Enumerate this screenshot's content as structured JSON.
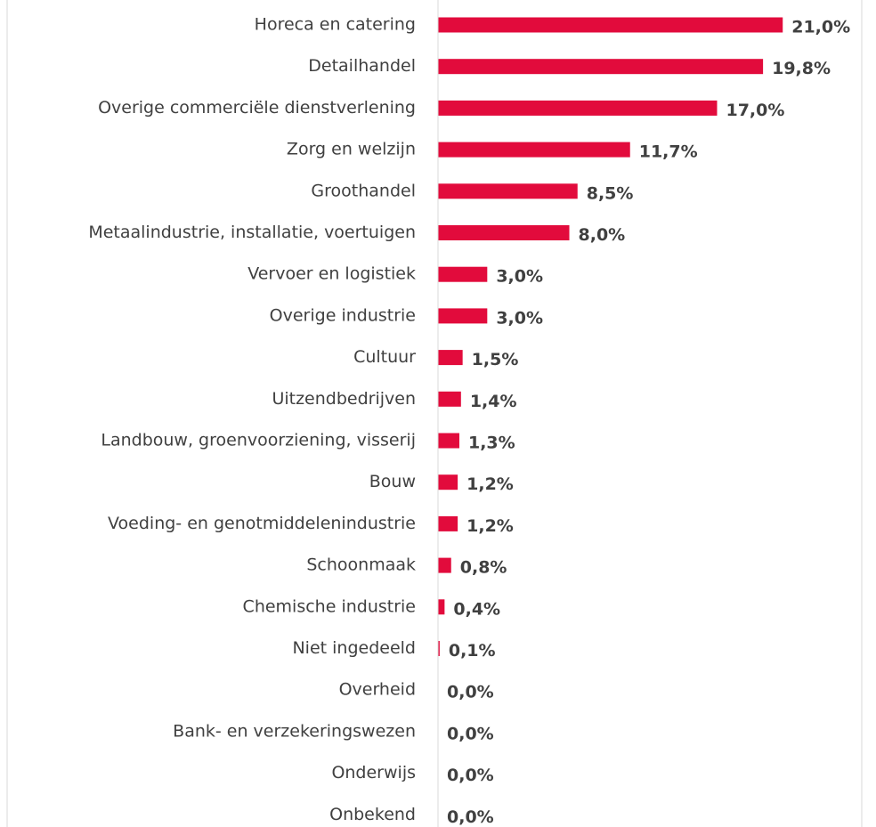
{
  "chart_data": {
    "type": "bar",
    "orientation": "horizontal",
    "color": "#e20b3c",
    "categories": [
      "Horeca en catering",
      "Detailhandel",
      "Overige commerciële dienstverlening",
      "Zorg en welzijn",
      "Groothandel",
      "Metaalindustrie, installatie, voertuigen",
      "Vervoer en logistiek",
      "Overige industrie",
      "Cultuur",
      "Uitzendbedrijven",
      "Landbouw, groenvoorziening, visserij",
      "Bouw",
      "Voeding- en genotmiddelenindustrie",
      "Schoonmaak",
      "Chemische industrie",
      "Niet ingedeeld",
      "Overheid",
      "Bank- en verzekeringswezen",
      "Onderwijs",
      "Onbekend"
    ],
    "values": [
      21.0,
      19.8,
      17.0,
      11.7,
      8.5,
      8.0,
      3.0,
      3.0,
      1.5,
      1.4,
      1.3,
      1.2,
      1.2,
      0.8,
      0.4,
      0.1,
      0.0,
      0.0,
      0.0,
      0.0
    ],
    "value_labels": [
      "21,0%",
      "19,8%",
      "17,0%",
      "11,7%",
      "8,5%",
      "8,0%",
      "3,0%",
      "3,0%",
      "1,5%",
      "1,4%",
      "1,3%",
      "1,2%",
      "1,2%",
      "0,8%",
      "0,4%",
      "0,1%",
      "0,0%",
      "0,0%",
      "0,0%",
      "0,0%"
    ],
    "xlim": [
      0,
      25
    ]
  }
}
